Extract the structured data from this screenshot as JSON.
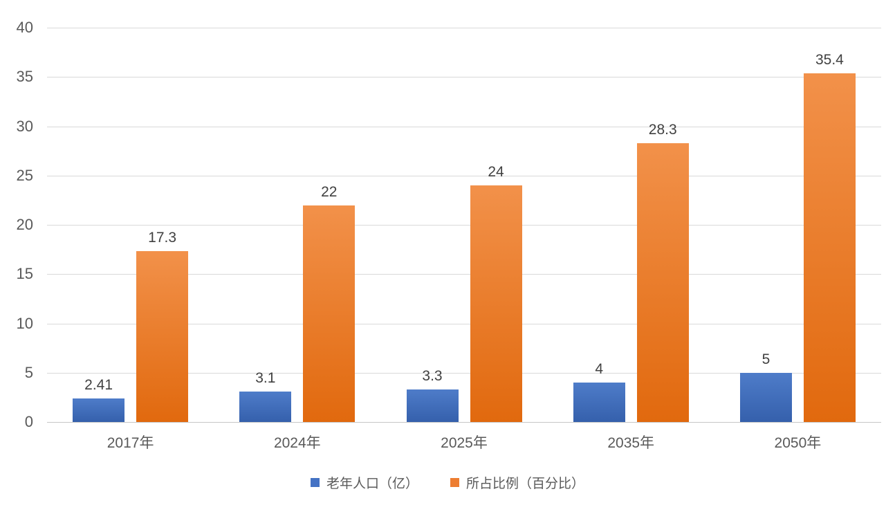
{
  "chart_data": {
    "type": "bar",
    "title": "",
    "xlabel": "",
    "ylabel": "",
    "categories": [
      "2017年",
      "2024年",
      "2025年",
      "2035年",
      "2050年"
    ],
    "series": [
      {
        "name": "老年人口（亿）",
        "values": [
          2.41,
          3.1,
          3.3,
          4,
          5
        ],
        "labels": [
          "2.41",
          "3.1",
          "3.3",
          "4",
          "5"
        ],
        "legend_color": "#4472c4",
        "gradient_top": "#4e7cc9",
        "gradient_bottom": "#3560ac"
      },
      {
        "name": "所占比例（百分比）",
        "values": [
          17.3,
          22,
          24,
          28.3,
          35.4
        ],
        "labels": [
          "17.3",
          "22",
          "24",
          "28.3",
          "35.4"
        ],
        "legend_color": "#ed7d31",
        "gradient_top": "#f2914a",
        "gradient_bottom": "#e1690e"
      }
    ],
    "ylim": [
      0,
      40
    ],
    "y_step": 5,
    "y_ticks": [
      "0",
      "5",
      "10",
      "15",
      "20",
      "25",
      "30",
      "35",
      "40"
    ],
    "grid": true,
    "legend_position": "bottom",
    "colors": {
      "background": "#ffffff",
      "gridline": "#d9d9d9",
      "axis_text": "#595959",
      "data_label_text": "#404040"
    }
  }
}
